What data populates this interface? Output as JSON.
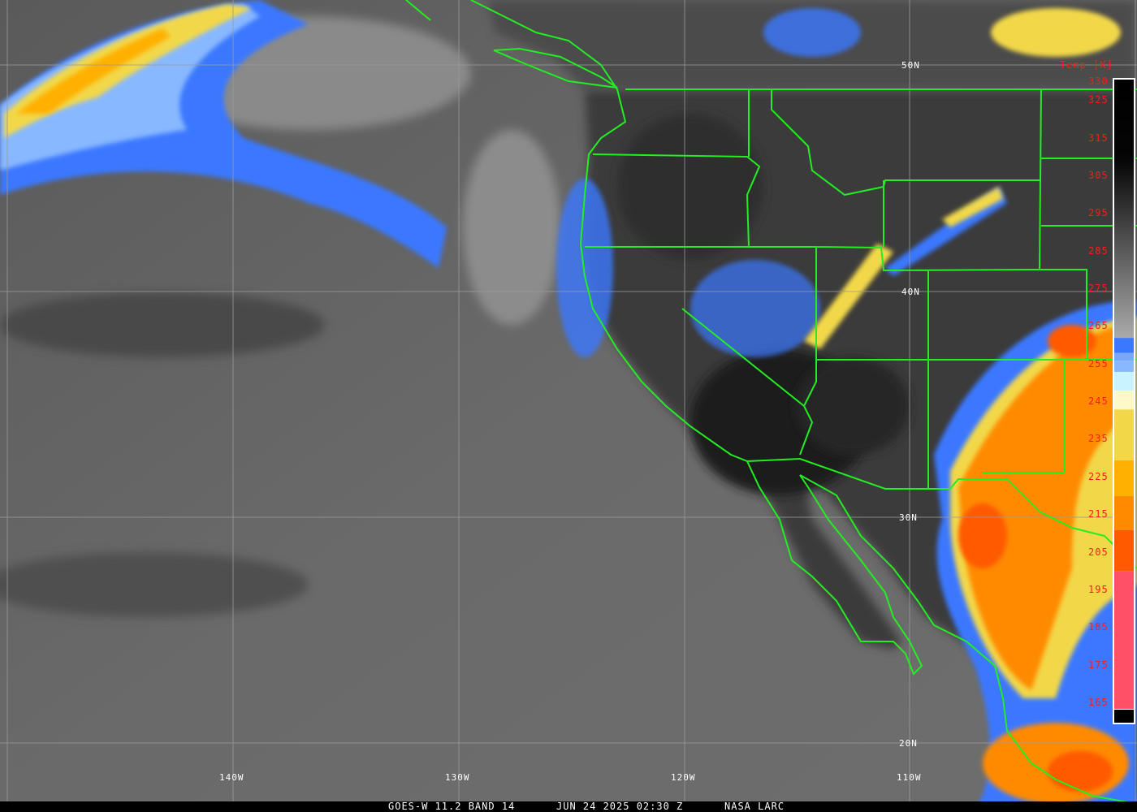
{
  "caption": {
    "satellite": "GOES-W 11.2 BAND 14",
    "datetime": "JUN 24 2025 02:30 Z",
    "source": "NASA LARC"
  },
  "grid": {
    "lat_labels": [
      "50N",
      "40N",
      "30N",
      "20N"
    ],
    "lon_labels": [
      "140W",
      "130W",
      "120W",
      "110W"
    ]
  },
  "colorbar": {
    "title": "Temp [K]",
    "ticks": [
      "330",
      "325",
      "315",
      "305",
      "295",
      "285",
      "275",
      "265",
      "255",
      "245",
      "235",
      "225",
      "215",
      "205",
      "195",
      "185",
      "175",
      "165"
    ],
    "bands": [
      {
        "from": 262,
        "to": 258,
        "color": "#3a78ff"
      },
      {
        "from": 258,
        "to": 256,
        "color": "#7aa8f8"
      },
      {
        "from": 256,
        "to": 253,
        "color": "#88b8ff"
      },
      {
        "from": 253,
        "to": 248,
        "color": "#c8f4ff"
      },
      {
        "from": 248,
        "to": 243,
        "color": "#fff8c8"
      },
      {
        "from": 243,
        "to": 229.5,
        "color": "#f2d848"
      },
      {
        "from": 229.5,
        "to": 220,
        "color": "#ffb000"
      },
      {
        "from": 220,
        "to": 211,
        "color": "#ff8a00"
      },
      {
        "from": 211,
        "to": 200,
        "color": "#ff5a00"
      },
      {
        "from": 200,
        "to": 163.5,
        "color": "#ff5068"
      }
    ]
  },
  "colors": {
    "border": "#22ee22",
    "grid": "#9a9a9a",
    "label": "#ffffff",
    "tick": "#ff1a1a"
  }
}
